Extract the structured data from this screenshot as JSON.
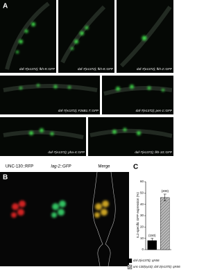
{
  "panel_a": {
    "letter": "A",
    "labels": [
      "daf-7(e1372); fkh-9::GFP",
      "daf-7(e1372); fkh-8::GFP",
      "daf-7(e1372); fkh-2::GFP",
      "daf-7(e1372); F26B1.7::GFP",
      "daf-7(e1372); pes-1::GFP",
      "daf-7(e1372); pha-4::GFP",
      "daf-7(e1372); fkh-10::GFP"
    ]
  },
  "panel_b": {
    "letter": "B",
    "headers": [
      "UNC-130::RFP",
      "lag-2::GFP",
      "Merge"
    ]
  },
  "chart_data": {
    "type": "bar",
    "letter": "C",
    "ylabel": "IL2-specific GFP expression (%)",
    "categories": [
      "daf-2(e1370); qIs56",
      "unc-130(oy10); daf-2(e1370); qIs56"
    ],
    "values": [
      8,
      46
    ],
    "errors": [
      2,
      3
    ],
    "bar_labels": [
      "(150)",
      "(200)"
    ],
    "colors": [
      "#000000",
      "#aaaaaa"
    ],
    "ylim": [
      0,
      60
    ],
    "yticks": [
      0,
      10,
      20,
      30,
      40,
      50,
      60
    ]
  }
}
